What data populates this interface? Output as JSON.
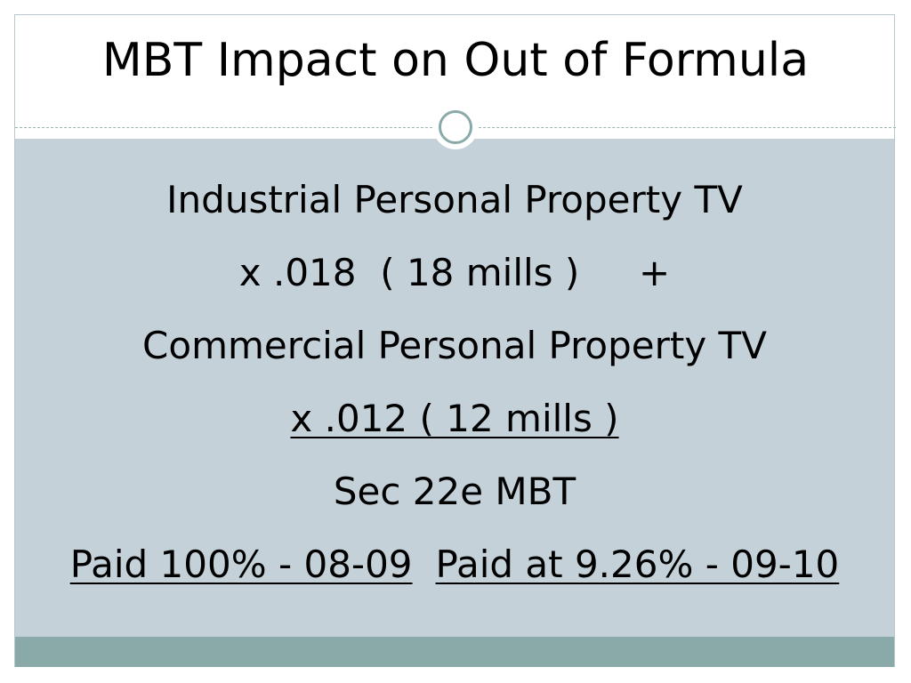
{
  "title": "MBT Impact on Out of Formula",
  "body": {
    "lines": [
      "Industrial Personal Property TV",
      "x .018  ( 18 mills )     +",
      "Commercial Personal Property TV",
      "x .012 ( 12 mills )",
      "Sec 22e MBT"
    ],
    "footer": [
      "Paid 100% - 08-09",
      "Paid at 9.26% - 09-10"
    ]
  }
}
